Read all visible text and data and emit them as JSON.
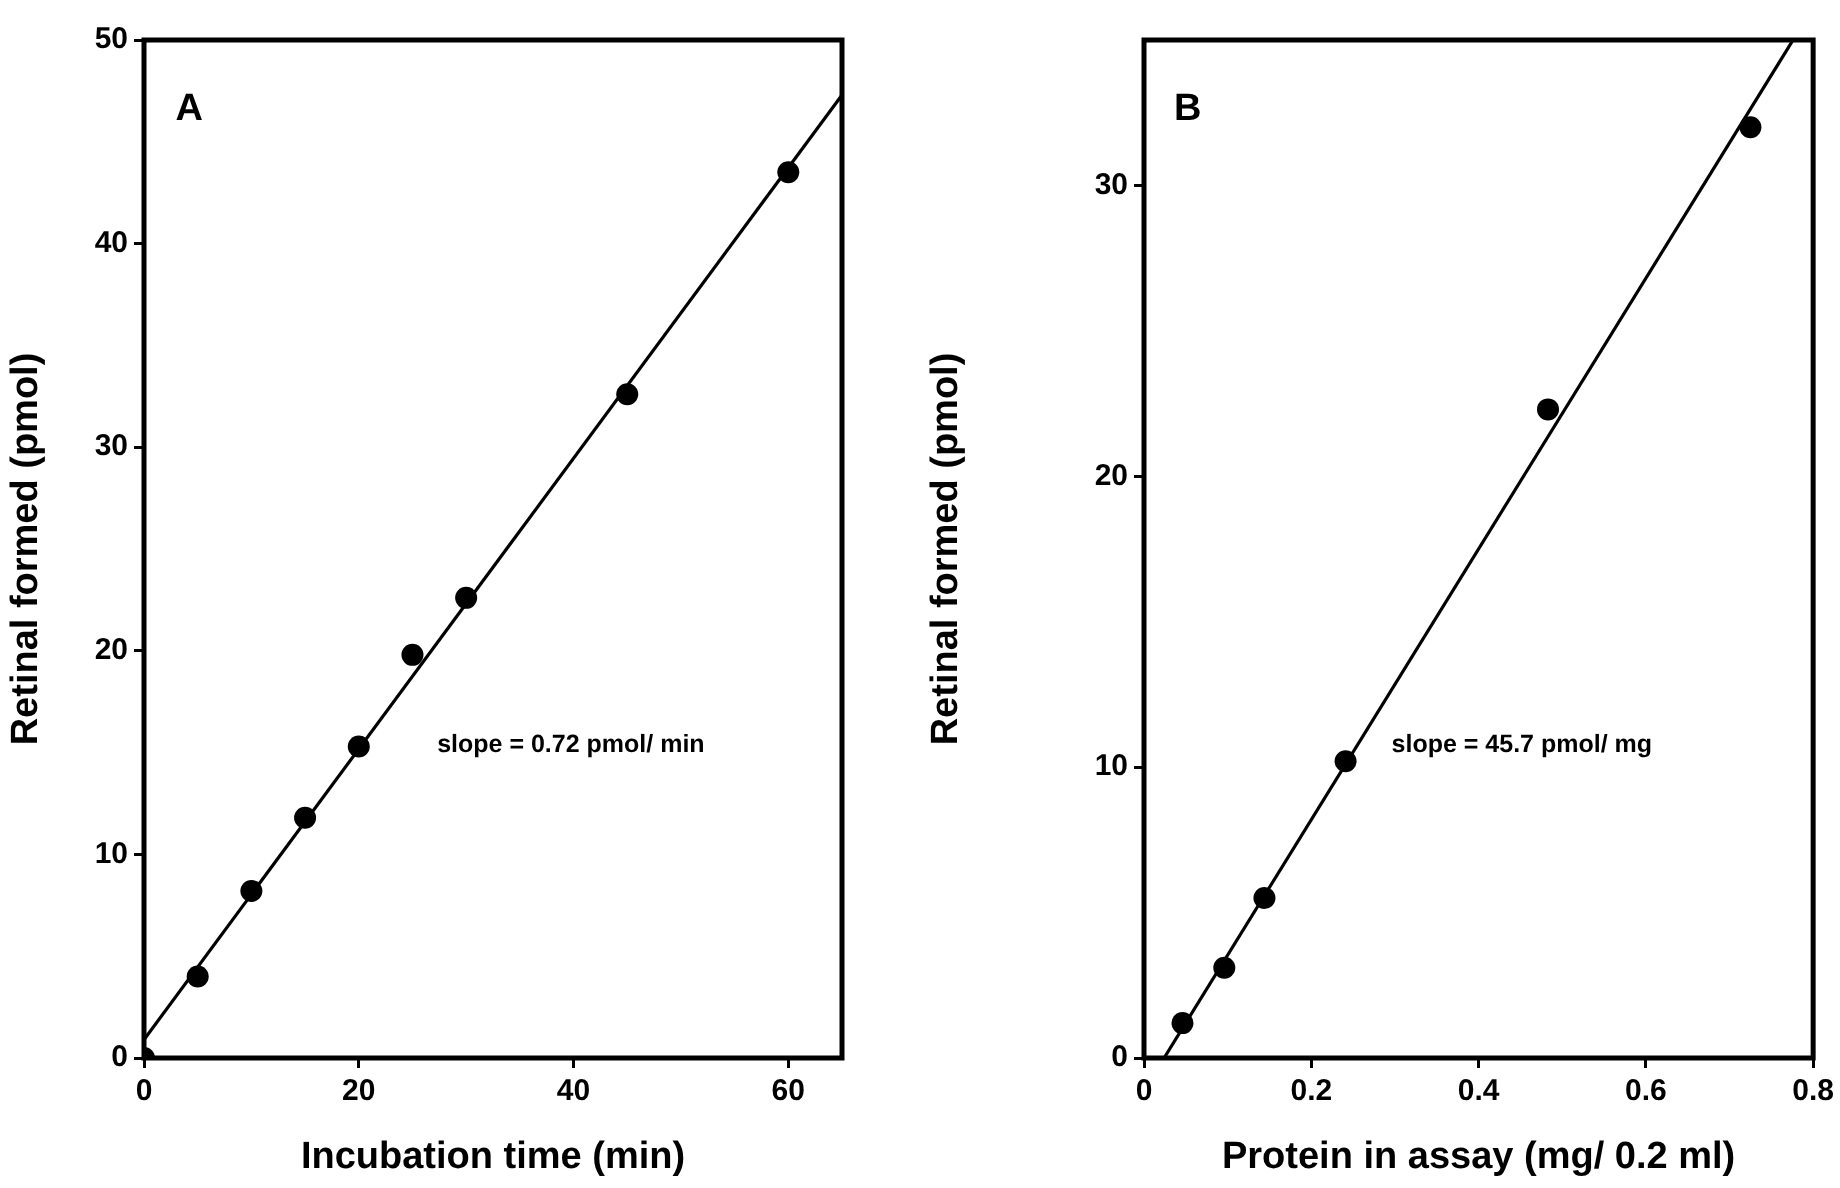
{
  "chart_data": [
    {
      "type": "scatter",
      "xlabel": "Incubation time (min)",
      "ylabel": "Retinal formed (pmol)",
      "xlim": [
        0,
        65
      ],
      "ylim": [
        0,
        50
      ],
      "xticks": [
        0,
        20,
        40,
        60
      ],
      "yticks": [
        0,
        10,
        20,
        30,
        40,
        50
      ],
      "marker": "circle",
      "annotations": [
        "A",
        "slope = 0.72 pmol/ min"
      ],
      "series": [
        {
          "type": "scatter",
          "color": "#000000",
          "x": [
            0,
            5,
            10,
            15,
            20,
            25,
            30,
            45,
            60
          ],
          "values": [
            0,
            4.0,
            8.2,
            11.8,
            15.3,
            19.8,
            22.6,
            32.6,
            43.5
          ]
        },
        {
          "type": "line",
          "color": "#000000",
          "marker": "none",
          "x": [
            0,
            65
          ],
          "values": [
            0.9,
            47.3
          ]
        }
      ]
    },
    {
      "type": "scatter",
      "xlabel": "Protein in assay (mg/ 0.2 ml)",
      "ylabel": "Retinal formed (pmol)",
      "xlim": [
        0,
        0.8
      ],
      "ylim": [
        0,
        35
      ],
      "xticks": [
        0,
        0.2,
        0.4,
        0.6,
        0.8
      ],
      "yticks": [
        0,
        10,
        20,
        30
      ],
      "marker": "circle",
      "annotations": [
        "B",
        "slope = 45.7 pmol/ mg"
      ],
      "series": [
        {
          "type": "scatter",
          "color": "#000000",
          "x": [
            0.046,
            0.096,
            0.144,
            0.241,
            0.483,
            0.725
          ],
          "values": [
            1.2,
            3.1,
            5.5,
            10.2,
            22.3,
            32.0
          ]
        },
        {
          "type": "line",
          "color": "#000000",
          "marker": "none",
          "x": [
            0.024,
            0.776
          ],
          "values": [
            0,
            35
          ]
        }
      ]
    }
  ]
}
